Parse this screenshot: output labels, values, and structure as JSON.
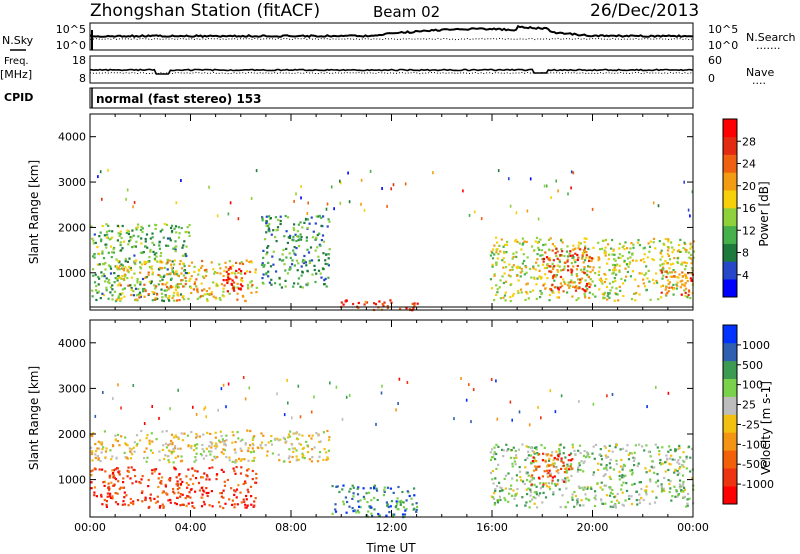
{
  "header": {
    "station": "Zhongshan Station (fitACF)",
    "beam": "Beam 02",
    "date": "26/Dec/2013"
  },
  "strip_nsky": {
    "label": "N.Sky",
    "left_ticks": [
      "10^5",
      "10^0"
    ],
    "right_ticks": [
      "10^5",
      "10^0"
    ],
    "right_label": "N.Search",
    "right_dots": "......."
  },
  "strip_freq": {
    "label_line1": "Freq.",
    "label_line2": "[MHz]",
    "left_ticks": [
      "18",
      "8"
    ],
    "right_ticks": [
      "60",
      "0"
    ],
    "right_label": "Nave",
    "right_dots": "...."
  },
  "cpid": {
    "label": "CPID",
    "value": "normal (fast stereo) 153"
  },
  "chart_data": [
    {
      "type": "heatmap",
      "ylabel": "Slant Range [km]",
      "ylim": [
        180,
        4500
      ],
      "yticks": [
        1000,
        2000,
        3000,
        4000
      ],
      "xlim": [
        0,
        24
      ],
      "colorbar": {
        "label": "Power [dB]",
        "ticks": [
          "28",
          "24",
          "20",
          "16",
          "12",
          "8",
          "4"
        ],
        "colors": [
          "#0000ff",
          "#2547c8",
          "#1e7a3c",
          "#46b04a",
          "#8ed13a",
          "#f6d10a",
          "#f49b14",
          "#ef6010",
          "#e32b12",
          "#ff0000"
        ]
      },
      "scatter_bands": [
        {
          "t0": 0.0,
          "t1": 4.0,
          "r0": 400,
          "r1": 2100,
          "level": 0.35
        },
        {
          "t0": 1.0,
          "t1": 6.6,
          "r0": 400,
          "r1": 1300,
          "level": 0.6
        },
        {
          "t0": 5.2,
          "t1": 6.2,
          "r0": 600,
          "r1": 1150,
          "level": 0.95
        },
        {
          "t0": 6.8,
          "t1": 9.5,
          "r0": 700,
          "r1": 2300,
          "level": 0.3
        },
        {
          "t0": 9.6,
          "t1": 13.0,
          "r0": 200,
          "r1": 420,
          "level": 0.85
        },
        {
          "t0": 15.9,
          "t1": 24.0,
          "r0": 400,
          "r1": 1800,
          "level": 0.5
        },
        {
          "t0": 18.0,
          "t1": 20.0,
          "r0": 600,
          "r1": 1600,
          "level": 0.8
        },
        {
          "t0": 22.6,
          "t1": 24.0,
          "r0": 500,
          "r1": 1100,
          "level": 0.75
        }
      ]
    },
    {
      "type": "heatmap",
      "ylabel": "Slant Range [km]",
      "ylim": [
        180,
        4500
      ],
      "yticks": [
        1000,
        2000,
        3000,
        4000
      ],
      "xlim": [
        0,
        24
      ],
      "xticks": [
        "00:00",
        "04:00",
        "08:00",
        "12:00",
        "16:00",
        "20:00",
        "00:00"
      ],
      "xlabel": "Time UT",
      "colorbar": {
        "label": "Velocity [m s-1]",
        "ticks": [
          "1000",
          "500",
          "100",
          "25",
          "-25",
          "-100",
          "-500",
          "-1000"
        ],
        "colors": [
          "#ff0000",
          "#ee3311",
          "#f2600a",
          "#f49414",
          "#f1c010",
          "#bdbdbd",
          "#7ad14a",
          "#3d9a52",
          "#2e5fb0",
          "#0033ff"
        ]
      },
      "scatter_bands": [
        {
          "t0": 0.0,
          "t1": 9.5,
          "r0": 1400,
          "r1": 2100,
          "level": 0.5
        },
        {
          "t0": 0.0,
          "t1": 6.6,
          "r0": 400,
          "r1": 1300,
          "level": 0.15
        },
        {
          "t0": 9.6,
          "t1": 13.0,
          "r0": 200,
          "r1": 900,
          "level": 0.8
        },
        {
          "t0": 15.9,
          "t1": 24.0,
          "r0": 400,
          "r1": 1800,
          "level": 0.62
        },
        {
          "t0": 17.5,
          "t1": 19.2,
          "r0": 900,
          "r1": 1600,
          "level": 0.2
        }
      ]
    }
  ]
}
